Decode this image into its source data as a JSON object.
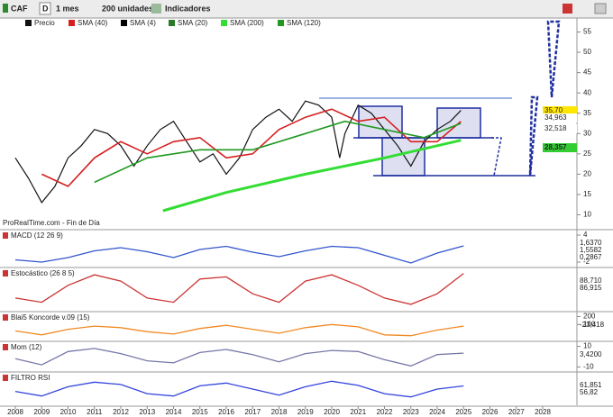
{
  "toolbar": {
    "symbol": "CAF",
    "period_button": "D",
    "timeframe": "1 mes",
    "units": "200 unidades",
    "indicators": "Indicadores"
  },
  "price_panel": {
    "watermark": "ProRealTime.com - Fin de Día",
    "ylim": [
      7,
      58
    ],
    "yticks": [
      55,
      50,
      45,
      40,
      35,
      30,
      25,
      20,
      15,
      10
    ],
    "price_labels": [
      {
        "text": "35,70",
        "color": "#ffe600"
      },
      {
        "text": "34,963",
        "color": "#ffffff"
      },
      {
        "text": "32,518",
        "color": "#ffffff"
      },
      {
        "text": "28,357",
        "color": "#33cc33"
      }
    ],
    "series": [
      {
        "name": "Precio",
        "color": "#111111",
        "x": [
          2008,
          2008.5,
          2009,
          2009.5,
          2010,
          2010.5,
          2011,
          2011.5,
          2012,
          2012.5,
          2013,
          2013.5,
          2014,
          2014.5,
          2015,
          2015.5,
          2016,
          2016.5,
          2017,
          2017.5,
          2018,
          2018.5,
          2019,
          2019.5,
          2020,
          2020.3,
          2020.5,
          2021,
          2021.5,
          2022,
          2022.5,
          2023,
          2023.5,
          2024,
          2024.5,
          2024.9
        ],
        "values": [
          24,
          19,
          13,
          17,
          24,
          27,
          31,
          30,
          27,
          22,
          27,
          31,
          33,
          28,
          23,
          25,
          20,
          24,
          31,
          34,
          36,
          33,
          38,
          37,
          34,
          24,
          30,
          37,
          35,
          31,
          27,
          22,
          28,
          31,
          33,
          35.7
        ]
      },
      {
        "name": "SMA (40)",
        "color": "#d62020",
        "x": [
          2009,
          2010,
          2011,
          2012,
          2013,
          2014,
          2015,
          2016,
          2017,
          2018,
          2019,
          2020,
          2021,
          2022,
          2023,
          2024,
          2024.9
        ],
        "values": [
          20,
          17,
          24,
          28,
          25,
          28,
          29,
          24,
          25,
          31,
          34,
          36,
          33,
          34,
          28,
          28,
          33
        ]
      },
      {
        "name": "SMA (4)",
        "color": "#000000"
      },
      {
        "name": "SMA (20)",
        "color": "#2a7a2a"
      },
      {
        "name": "SMA (200)",
        "color": "#33dd33",
        "x": [
          2013.6,
          2016,
          2019,
          2022,
          2024.9
        ],
        "values": [
          11,
          15.5,
          20,
          24,
          28.357
        ]
      },
      {
        "name": "SMA (120)",
        "color": "#229922",
        "x": [
          2011,
          2013,
          2015,
          2017,
          2019,
          2020.5,
          2022,
          2023.5,
          2024.9
        ],
        "values": [
          18,
          24,
          26,
          26,
          30,
          33,
          31,
          29,
          32.5
        ]
      }
    ]
  },
  "x_axis": {
    "ticks": [
      2008,
      2009,
      2010,
      2011,
      2012,
      2013,
      2014,
      2015,
      2016,
      2017,
      2018,
      2019,
      2020,
      2021,
      2022,
      2023,
      2024,
      2025,
      2026,
      2027,
      2028
    ]
  },
  "indicators": [
    {
      "title": "MACD (12 26 9)",
      "ylim": [
        -3,
        5
      ],
      "yticks": [
        4,
        -2
      ],
      "labels": [
        "1,6370",
        "1,5582",
        "0,2867"
      ],
      "color": "#3355cc",
      "x": [
        2008,
        2009,
        2010,
        2011,
        2012,
        2013,
        2014,
        2015,
        2016,
        2017,
        2018,
        2019,
        2020,
        2021,
        2022,
        2023,
        2024,
        2025
      ],
      "values": [
        -1.5,
        -2,
        -1,
        0.5,
        1.2,
        0.3,
        -1,
        0.8,
        1.5,
        0.2,
        -0.8,
        0.5,
        1.5,
        1.2,
        -0.5,
        -2.2,
        0,
        1.6
      ]
    },
    {
      "title": "Estocástico (26 8 5)",
      "ylim": [
        0,
        100
      ],
      "yticks": [],
      "labels": [
        "88,710",
        "86,915"
      ],
      "color": "#cc3333",
      "x": [
        2008,
        2009,
        2010,
        2011,
        2012,
        2013,
        2014,
        2015,
        2016,
        2017,
        2018,
        2019,
        2020,
        2021,
        2022,
        2023,
        2024,
        2025
      ],
      "values": [
        30,
        20,
        60,
        85,
        70,
        30,
        20,
        75,
        80,
        40,
        20,
        70,
        85,
        60,
        30,
        15,
        40,
        88
      ]
    },
    {
      "title": "Blai5 Koncorde v.09 (15)",
      "ylim": [
        -100,
        250
      ],
      "yticks": [
        200,
        100
      ],
      "labels": [
        "-23,418"
      ],
      "color": "#f08a24",
      "x": [
        2008,
        2009,
        2010,
        2011,
        2012,
        2013,
        2014,
        2015,
        2016,
        2017,
        2018,
        2019,
        2020,
        2021,
        2022,
        2023,
        2024,
        2025
      ],
      "values": [
        20,
        -30,
        40,
        80,
        60,
        10,
        -20,
        50,
        90,
        40,
        -10,
        60,
        100,
        70,
        -30,
        -40,
        30,
        80
      ]
    },
    {
      "title": "Mom (12)",
      "ylim": [
        -14,
        14
      ],
      "yticks": [
        10,
        -10
      ],
      "labels": [
        "3,4200"
      ],
      "color": "#7777aa",
      "x": [
        2008,
        2009,
        2010,
        2011,
        2012,
        2013,
        2014,
        2015,
        2016,
        2017,
        2018,
        2019,
        2020,
        2021,
        2022,
        2023,
        2024,
        2025
      ],
      "values": [
        -2,
        -8,
        5,
        8,
        3,
        -4,
        -6,
        4,
        7,
        2,
        -5,
        3,
        6,
        5,
        -3,
        -9,
        2,
        3.4
      ]
    },
    {
      "title": "FILTRO RSI",
      "ylim": [
        20,
        90
      ],
      "yticks": [],
      "labels": [
        "61,851",
        "56,82"
      ],
      "color": "#3344dd",
      "x": [
        2008,
        2009,
        2010,
        2011,
        2012,
        2013,
        2014,
        2015,
        2016,
        2017,
        2018,
        2019,
        2020,
        2021,
        2022,
        2023,
        2024,
        2025
      ],
      "values": [
        50,
        40,
        60,
        70,
        65,
        45,
        40,
        62,
        68,
        55,
        42,
        60,
        72,
        63,
        45,
        38,
        55,
        61.9
      ]
    }
  ]
}
